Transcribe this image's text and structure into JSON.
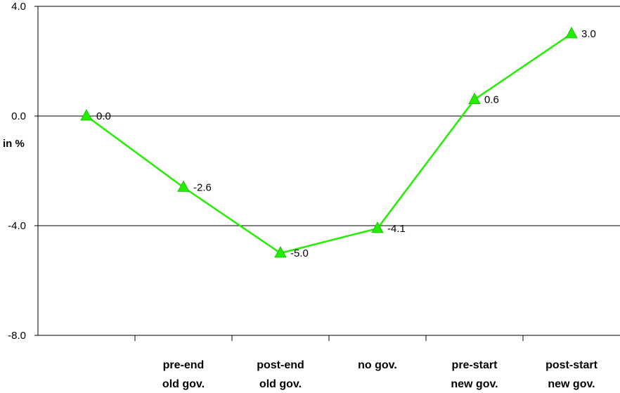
{
  "chart_data": {
    "type": "line",
    "categories": [
      [
        "",
        ""
      ],
      [
        "pre-end",
        "old gov."
      ],
      [
        "post-end",
        "old gov."
      ],
      [
        "no gov.",
        ""
      ],
      [
        "pre-start",
        "new gov."
      ],
      [
        "post-start",
        "new gov."
      ]
    ],
    "series": [
      {
        "values": [
          0.0,
          -2.6,
          -5.0,
          -4.1,
          0.6,
          3.0
        ],
        "labels": [
          "0.0",
          "-2.6",
          "-5.0",
          "-4.1",
          "0.6",
          "3.0"
        ],
        "color": "#22ee00",
        "marker": "triangle"
      }
    ],
    "ylabel": "in %",
    "ylim": [
      -8.0,
      4.0
    ],
    "yticks": [
      4.0,
      0.0,
      -4.0,
      -8.0
    ],
    "ytick_labels": [
      "4.0",
      "0.0",
      "-4.0",
      "-8.0"
    ],
    "grid": true,
    "legend": "none"
  }
}
